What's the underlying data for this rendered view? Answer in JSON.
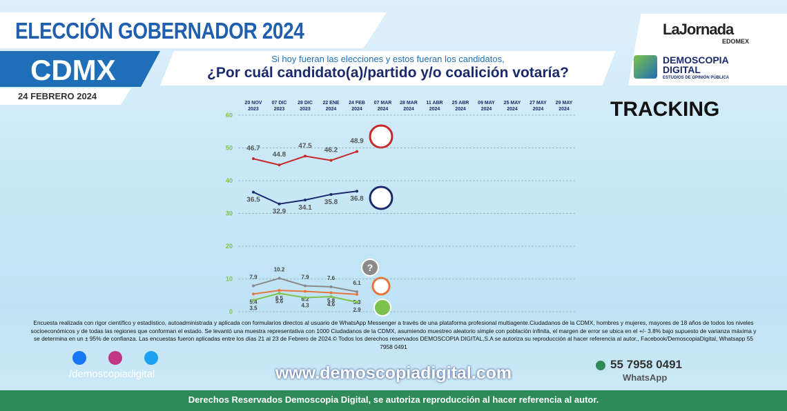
{
  "header": {
    "title": "ELECCIÓN GOBERNADOR 2024",
    "region": "CDMX",
    "date": "24 FEBRERO 2024",
    "question_intro": "Si hoy fueran las elecciones y estos fueran los candidatos,",
    "question": "¿Por cuál candidato(a)/partido y/o coalición votaría?",
    "brand": "LaJornada",
    "brand_sub": "EDOMEX",
    "pollster": "DEMOSCOPIA DIGITAL",
    "pollster_sub": "ESTUDIOS DE OPINIÓN PÚBLICA"
  },
  "chart_data": {
    "type": "line",
    "title": "TRACKING",
    "categories": [
      "20 NOV 2023",
      "07 DIC 2023",
      "28 DIC 2023",
      "22 ENE 2024",
      "24 FEB 2024",
      "07 MAR 2024",
      "28 MAR 2024",
      "11 ABR 2024",
      "25 ABR 2024",
      "09 MAY 2024",
      "25 MAY 2024",
      "27 MAY 2024",
      "29 MAY 2024"
    ],
    "series": [
      {
        "color": "#c62828",
        "values": [
          46.7,
          44.8,
          47.5,
          46.2,
          48.9,
          null,
          null,
          null,
          null,
          null,
          null,
          null,
          null
        ]
      },
      {
        "color": "#1a2a6c",
        "values": [
          36.5,
          32.9,
          34.1,
          35.8,
          36.8,
          null,
          null,
          null,
          null,
          null,
          null,
          null,
          null
        ]
      },
      {
        "color": "#8a8a8a",
        "values": [
          7.9,
          10.2,
          7.9,
          7.6,
          6.1,
          null,
          null,
          null,
          null,
          null,
          null,
          null,
          null
        ]
      },
      {
        "color": "#e8743b",
        "values": [
          5.4,
          6.5,
          6.2,
          5.8,
          5.3,
          null,
          null,
          null,
          null,
          null,
          null,
          null,
          null
        ]
      },
      {
        "color": "#7cc24a",
        "values": [
          3.5,
          5.6,
          4.3,
          4.6,
          2.9,
          null,
          null,
          null,
          null,
          null,
          null,
          null,
          null
        ]
      }
    ],
    "unknown_marker": "?",
    "ylim": [
      0,
      60
    ],
    "yticks": [
      0,
      10,
      20,
      30,
      40,
      50,
      60
    ],
    "grid": true
  },
  "footer": {
    "note": "Encuesta realizada con rigor científico y estadístico, autoadministrada y aplicada con formularios directos al usuario de WhatsApp Messenger a través de una plataforma profesional multiagente.Ciudadanos de la CDMX, hombres y mujeres, mayores de 18 años de todos los niveles socioeconómicos y de todas las regiones que conforman el estado. Se levantó una muestra representativa con 1000 Ciudadanos de la CDMX, asumiendo muestreo aleatorio simple con población infinita, el margen de error se ubica en el +/- 3.8% bajo supuesto de varianza máxima y se determina en un ± 95% de confianza. Las encuestas fueron aplicadas entre los días 21 al 23 de Febrero de 2024.© Todos los derechos reservados DEMOSCOPIA DIGITAL,S.A se autoriza su reproducción al hacer referencia al autor., Facebook/DemoscopiaDigital, Whatsapp 55 7958 0491",
    "social": "/demoscopiadigital",
    "url": "www.demoscopiadigital.com",
    "phone": "55 7958 0491",
    "phone_label": "WhatsApp",
    "rights": "Derechos Reservados Demoscopia Digital, se autoriza reproducción al hacer referencia al autor."
  }
}
